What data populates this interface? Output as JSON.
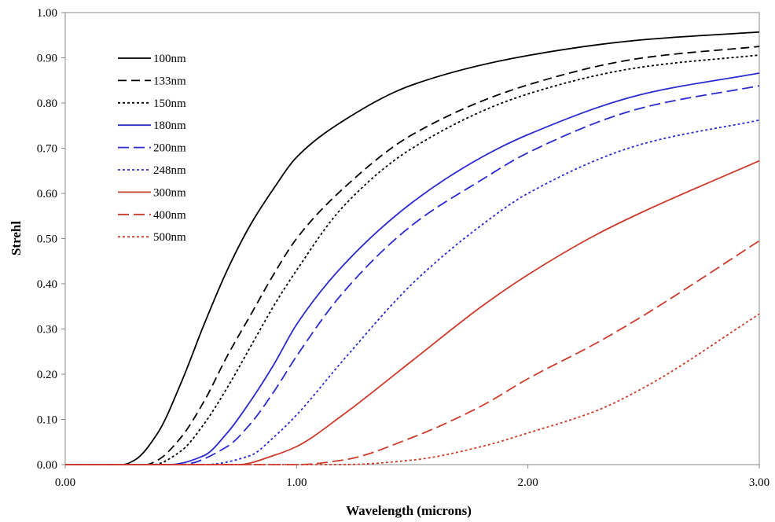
{
  "chart_data": {
    "type": "line",
    "title": "",
    "xlabel": "Wavelength (microns)",
    "ylabel": "Strehl",
    "xlim": [
      0,
      3
    ],
    "ylim": [
      0,
      1
    ],
    "x_ticks": [
      {
        "value": 0,
        "label": "0.00"
      },
      {
        "value": 1,
        "label": "1.00"
      },
      {
        "value": 2,
        "label": "2.00"
      },
      {
        "value": 3,
        "label": "3.00"
      }
    ],
    "y_ticks": [
      {
        "value": 0.0,
        "label": "0.00"
      },
      {
        "value": 0.1,
        "label": "0.10"
      },
      {
        "value": 0.2,
        "label": "0.20"
      },
      {
        "value": 0.3,
        "label": "0.30"
      },
      {
        "value": 0.4,
        "label": "0.40"
      },
      {
        "value": 0.5,
        "label": "0.50"
      },
      {
        "value": 0.6,
        "label": "0.60"
      },
      {
        "value": 0.7,
        "label": "0.70"
      },
      {
        "value": 0.8,
        "label": "0.80"
      },
      {
        "value": 0.9,
        "label": "0.90"
      },
      {
        "value": 1.0,
        "label": "1.00"
      }
    ],
    "grid": false,
    "legend_position": "top-left",
    "series": [
      {
        "name": "100nm",
        "color": "#000000",
        "dash": "solid",
        "x": [
          0,
          0.25,
          0.3,
          0.4,
          0.5,
          0.6,
          0.7,
          0.8,
          0.9,
          1.0,
          1.2,
          1.5,
          2.0,
          2.5,
          3.0
        ],
        "y": [
          0,
          0.0,
          0.01,
          0.07,
          0.18,
          0.31,
          0.43,
          0.53,
          0.61,
          0.68,
          0.76,
          0.84,
          0.905,
          0.94,
          0.957
        ]
      },
      {
        "name": "133nm",
        "color": "#000000",
        "dash": "dashed",
        "x": [
          0,
          0.35,
          0.4,
          0.5,
          0.6,
          0.7,
          0.8,
          0.9,
          1.0,
          1.2,
          1.5,
          2.0,
          2.5,
          3.0
        ],
        "y": [
          0,
          0.0,
          0.01,
          0.06,
          0.14,
          0.24,
          0.33,
          0.42,
          0.5,
          0.61,
          0.73,
          0.84,
          0.9,
          0.925
        ]
      },
      {
        "name": "150nm",
        "color": "#000000",
        "dash": "dotted",
        "x": [
          0,
          0.38,
          0.5,
          0.6,
          0.7,
          0.8,
          0.9,
          1.0,
          1.2,
          1.5,
          2.0,
          2.5,
          3.0
        ],
        "y": [
          0,
          0.0,
          0.03,
          0.09,
          0.17,
          0.26,
          0.35,
          0.43,
          0.57,
          0.7,
          0.82,
          0.88,
          0.906
        ]
      },
      {
        "name": "180nm",
        "color": "#2b2bd0",
        "dash": "solid",
        "x": [
          0,
          0.45,
          0.6,
          0.7,
          0.8,
          0.9,
          1.0,
          1.2,
          1.5,
          1.8,
          2.0,
          2.5,
          3.0
        ],
        "y": [
          0,
          0.0,
          0.02,
          0.07,
          0.14,
          0.22,
          0.31,
          0.44,
          0.58,
          0.68,
          0.73,
          0.82,
          0.866
        ]
      },
      {
        "name": "200nm",
        "color": "#2b2bd0",
        "dash": "long-dash",
        "x": [
          0,
          0.5,
          0.7,
          0.8,
          0.9,
          1.0,
          1.2,
          1.5,
          1.8,
          2.0,
          2.5,
          3.0
        ],
        "y": [
          0,
          0.0,
          0.04,
          0.09,
          0.16,
          0.24,
          0.38,
          0.53,
          0.63,
          0.69,
          0.79,
          0.838
        ]
      },
      {
        "name": "248nm",
        "color": "#2b2bd0",
        "dash": "dotted",
        "x": [
          0,
          0.6,
          0.8,
          0.9,
          1.0,
          1.2,
          1.5,
          1.8,
          2.0,
          2.5,
          3.0
        ],
        "y": [
          0,
          0.0,
          0.02,
          0.06,
          0.11,
          0.23,
          0.4,
          0.53,
          0.6,
          0.71,
          0.762
        ]
      },
      {
        "name": "300nm",
        "color": "#cc3b2b",
        "dash": "solid",
        "x": [
          0,
          0.75,
          0.9,
          1.0,
          1.2,
          1.5,
          1.8,
          2.0,
          2.3,
          2.5,
          3.0
        ],
        "y": [
          0,
          0.0,
          0.02,
          0.04,
          0.11,
          0.23,
          0.35,
          0.42,
          0.51,
          0.56,
          0.672
        ]
      },
      {
        "name": "400nm",
        "color": "#cc3b2b",
        "dash": "long-dash",
        "x": [
          0,
          1.0,
          1.2,
          1.5,
          1.8,
          2.0,
          2.3,
          2.5,
          3.0
        ],
        "y": [
          0,
          0.0,
          0.01,
          0.06,
          0.13,
          0.19,
          0.27,
          0.33,
          0.495
        ]
      },
      {
        "name": "500nm",
        "color": "#cc3b2b",
        "dash": "dotted",
        "x": [
          0,
          1.2,
          1.5,
          1.8,
          2.0,
          2.3,
          2.5,
          3.0
        ],
        "y": [
          0,
          0.0,
          0.01,
          0.04,
          0.07,
          0.12,
          0.17,
          0.333
        ]
      }
    ]
  }
}
